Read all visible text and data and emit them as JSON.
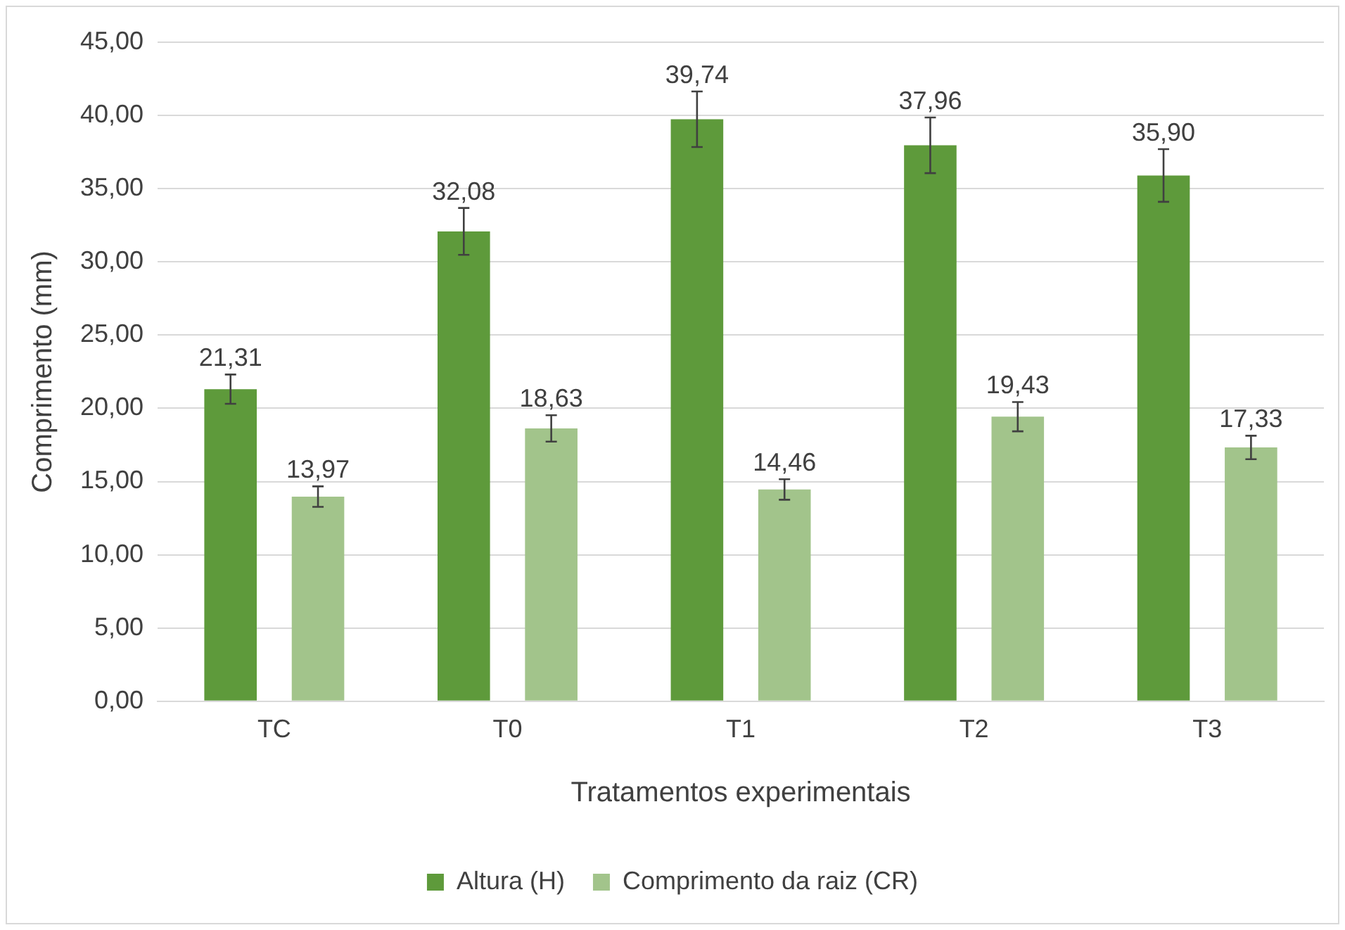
{
  "chart_data": {
    "type": "bar",
    "xlabel": "Tratamentos experimentais",
    "ylabel": "Comprimento (mm)",
    "categories": [
      "TC",
      "T0",
      "T1",
      "T2",
      "T3"
    ],
    "series": [
      {
        "name": "Altura (H)",
        "color": "#5e9a3b",
        "values": [
          21.31,
          32.08,
          39.74,
          37.96,
          35.9
        ],
        "errors": [
          1.0,
          1.6,
          1.9,
          1.9,
          1.8
        ],
        "value_labels": [
          "21,31",
          "32,08",
          "39,74",
          "37,96",
          "35,90"
        ]
      },
      {
        "name": "Comprimento da raiz (CR)",
        "color": "#a2c48b",
        "values": [
          13.97,
          18.63,
          14.46,
          19.43,
          17.33
        ],
        "errors": [
          0.7,
          0.9,
          0.7,
          1.0,
          0.8
        ],
        "value_labels": [
          "13,97",
          "18,63",
          "14,46",
          "19,43",
          "17,33"
        ]
      }
    ],
    "ylim": [
      0,
      45
    ],
    "yticks": [
      {
        "value": 0,
        "label": "0,00"
      },
      {
        "value": 5,
        "label": "5,00"
      },
      {
        "value": 10,
        "label": "10,00"
      },
      {
        "value": 15,
        "label": "15,00"
      },
      {
        "value": 20,
        "label": "20,00"
      },
      {
        "value": 25,
        "label": "25,00"
      },
      {
        "value": 30,
        "label": "30,00"
      },
      {
        "value": 35,
        "label": "35,00"
      },
      {
        "value": 40,
        "label": "40,00"
      },
      {
        "value": 45,
        "label": "45,00"
      }
    ],
    "grid": "y",
    "legend": "bottom"
  }
}
